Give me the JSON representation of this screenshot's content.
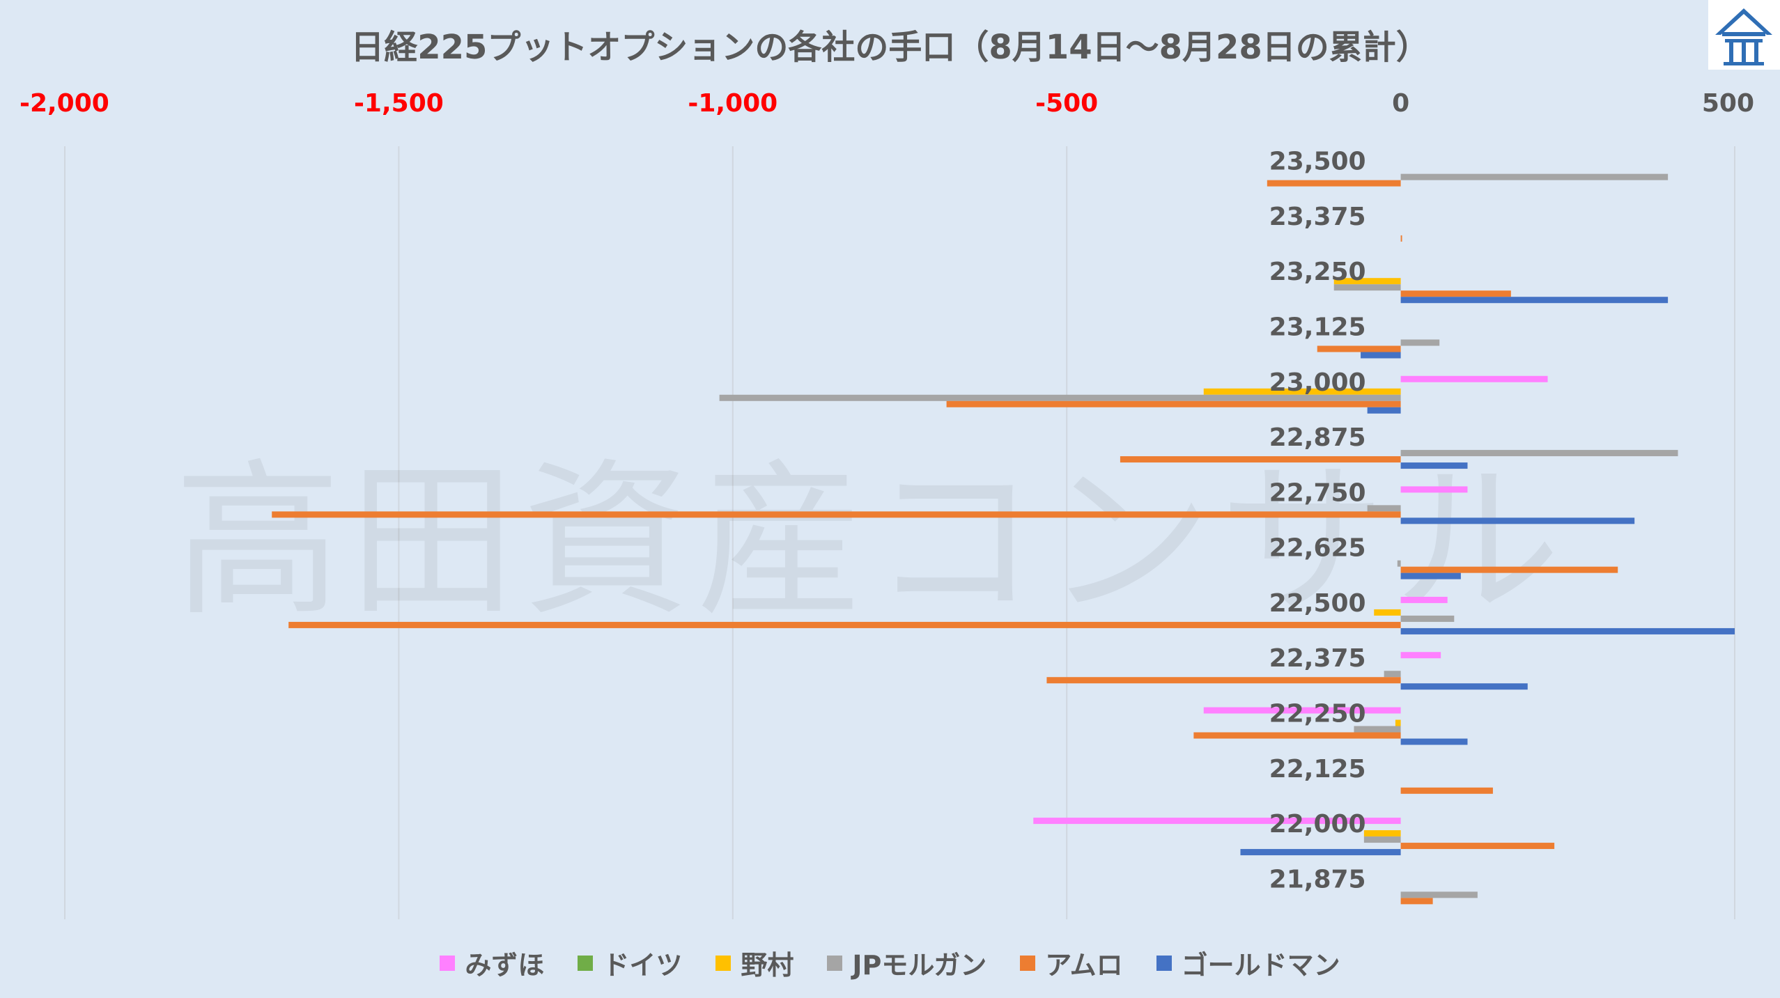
{
  "title": "日経225プットオプションの各社の手口（8月14日～8月28日の累計）",
  "watermark": "高田資産コンサル",
  "colors": {
    "background": "#dde8f4",
    "axis_label": "#ff0000",
    "zero_label": "#595959",
    "grid": "#d0d7df",
    "logo": "#2f6eb5"
  },
  "logo": {
    "icon": "house-logo-icon"
  },
  "chart_data": {
    "type": "bar",
    "orientation": "horizontal",
    "title": "日経225プットオプションの各社の手口（8月14日～8月28日の累計）",
    "xlim": [
      -2000,
      500
    ],
    "xticks": [
      -2000,
      -1500,
      -1000,
      -500,
      0,
      500
    ],
    "xtick_labels": [
      "-2,000",
      "-1,500",
      "-1,000",
      "-500",
      "0",
      "500"
    ],
    "categories": [
      "23,500",
      "23,375",
      "23,250",
      "23,125",
      "23,000",
      "22,875",
      "22,750",
      "22,625",
      "22,500",
      "22,375",
      "22,250",
      "22,125",
      "22,000",
      "21,875"
    ],
    "grid": "vertical",
    "legend_position": "bottom",
    "series": [
      {
        "name": "みずほ",
        "color": "#ff80ff",
        "values": [
          0,
          0,
          0,
          0,
          220,
          0,
          100,
          0,
          70,
          60,
          -295,
          0,
          -550,
          0
        ]
      },
      {
        "name": "ドイツ",
        "color": "#70ad47",
        "values": [
          0,
          0,
          0,
          0,
          0,
          0,
          0,
          0,
          0,
          0,
          0,
          0,
          0,
          0
        ]
      },
      {
        "name": "野村",
        "color": "#ffc000",
        "values": [
          0,
          0,
          -100,
          0,
          -295,
          0,
          0,
          0,
          -40,
          0,
          -8,
          0,
          -55,
          0
        ]
      },
      {
        "name": "JPモルガン",
        "color": "#a5a5a5",
        "values": [
          400,
          0,
          -100,
          58,
          -1020,
          415,
          -50,
          -5,
          80,
          -25,
          -70,
          0,
          -55,
          115
        ]
      },
      {
        "name": "アムロ",
        "color": "#ed7d31",
        "values": [
          -200,
          2,
          165,
          -125,
          -680,
          -420,
          -1690,
          325,
          -1665,
          -530,
          -310,
          138,
          230,
          48
        ]
      },
      {
        "name": "ゴールドマン",
        "color": "#4472c4",
        "values": [
          0,
          0,
          400,
          -60,
          -50,
          100,
          350,
          90,
          500,
          190,
          100,
          0,
          -240,
          0
        ]
      }
    ]
  }
}
